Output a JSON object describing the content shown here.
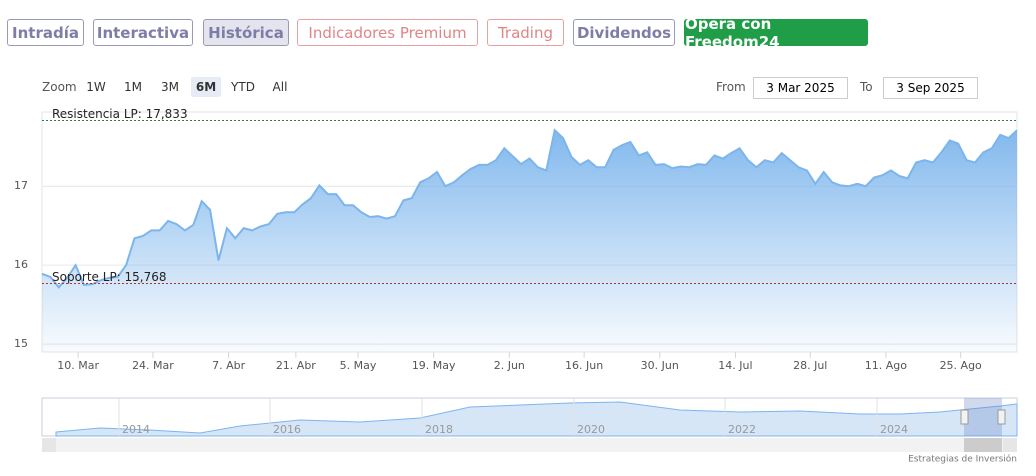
{
  "tabs": [
    "Intradía",
    "Interactiva",
    "Histórica",
    "Indicadores Premium",
    "Trading",
    "Dividendos",
    "Opera con Freedom24"
  ],
  "zoom": {
    "label": "Zoom",
    "options": [
      "1W",
      "1M",
      "3M",
      "6M",
      "YTD",
      "All"
    ],
    "selected": "6M"
  },
  "range": {
    "from_label": "From",
    "from": "3 Mar 2025",
    "to_label": "To",
    "to": "3 Sep 2025"
  },
  "chart_data": {
    "type": "area",
    "color": "#7cb5ec",
    "grid": true,
    "values": [
      15.89,
      15.85,
      15.72,
      15.84,
      16.0,
      15.75,
      15.76,
      15.81,
      15.84,
      15.85,
      16.0,
      16.34,
      16.37,
      16.44,
      16.44,
      16.56,
      16.52,
      16.44,
      16.51,
      16.81,
      16.7,
      16.06,
      16.47,
      16.34,
      16.47,
      16.44,
      16.49,
      16.52,
      16.65,
      16.67,
      16.67,
      16.77,
      16.85,
      17.01,
      16.9,
      16.9,
      16.76,
      16.76,
      16.67,
      16.61,
      16.62,
      16.59,
      16.62,
      16.82,
      16.85,
      17.05,
      17.1,
      17.18,
      17.0,
      17.05,
      17.14,
      17.22,
      17.27,
      17.27,
      17.33,
      17.48,
      17.38,
      17.28,
      17.35,
      17.24,
      17.2,
      17.71,
      17.61,
      17.37,
      17.27,
      17.33,
      17.24,
      17.24,
      17.46,
      17.52,
      17.56,
      17.39,
      17.43,
      17.27,
      17.28,
      17.23,
      17.25,
      17.24,
      17.28,
      17.27,
      17.39,
      17.35,
      17.42,
      17.48,
      17.33,
      17.24,
      17.33,
      17.3,
      17.42,
      17.33,
      17.24,
      17.2,
      17.03,
      17.18,
      17.05,
      17.01,
      17.0,
      17.03,
      17.0,
      17.11,
      17.14,
      17.2,
      17.13,
      17.1,
      17.3,
      17.33,
      17.3,
      17.43,
      17.58,
      17.54,
      17.33,
      17.3,
      17.43,
      17.48,
      17.65,
      17.61,
      17.71
    ],
    "ylim": [
      14.9,
      17.94
    ],
    "yticks": [
      15,
      16,
      17
    ],
    "xlim": [
      0,
      116
    ],
    "xticks": [
      {
        "value": 4.3,
        "label": "10. Mar"
      },
      {
        "value": 13.2,
        "label": "24. Mar"
      },
      {
        "value": 22.2,
        "label": "7. Abr"
      },
      {
        "value": 30.2,
        "label": "21. Abr"
      },
      {
        "value": 37.6,
        "label": "5. May"
      },
      {
        "value": 46.6,
        "label": "19. May"
      },
      {
        "value": 55.6,
        "label": "2. Jun"
      },
      {
        "value": 64.5,
        "label": "16. Jun"
      },
      {
        "value": 73.5,
        "label": "30. Jun"
      },
      {
        "value": 82.5,
        "label": "14. Jul"
      },
      {
        "value": 91.4,
        "label": "28. Jul"
      },
      {
        "value": 100.4,
        "label": "11. Ago"
      },
      {
        "value": 109.3,
        "label": "25. Ago"
      }
    ],
    "annotations": [
      {
        "label": "Resistencia LP: 17,833",
        "value": 17.833,
        "color": "#2e7d32"
      },
      {
        "label": "Soporte LP: 15,768",
        "value": 15.768,
        "color": "#a33"
      }
    ]
  },
  "navigator": {
    "labels": [
      "2014",
      "2016",
      "2018",
      "2020",
      "2022",
      "2024"
    ]
  },
  "credit": "Estrategias de Inversión"
}
